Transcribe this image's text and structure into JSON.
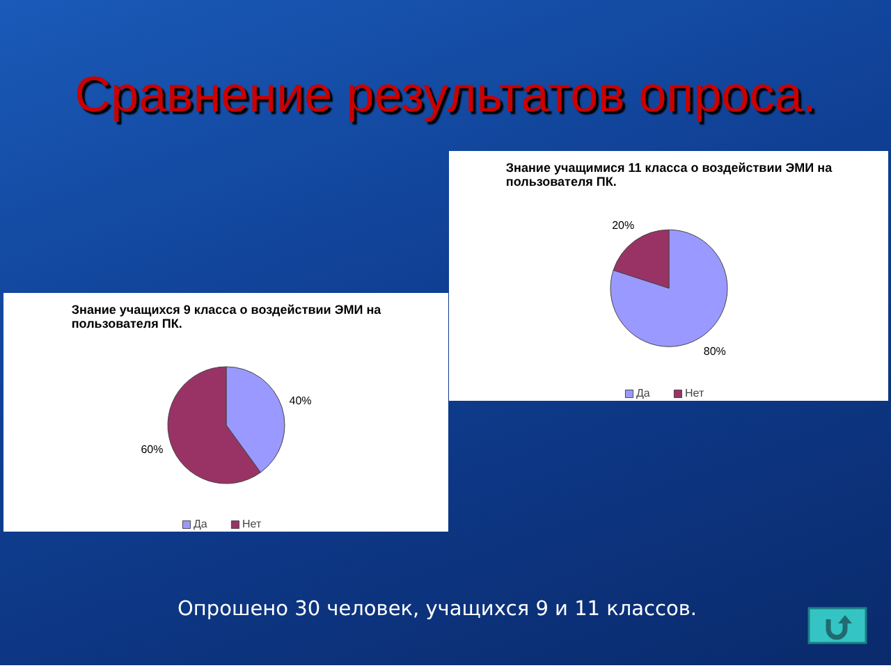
{
  "chart_data": [
    {
      "type": "other",
      "title": "Сравнение результатов опроса.",
      "annotations": [
        "Опрошено 30 человек, учащихся 9 и 11 классов."
      ]
    },
    {
      "type": "pie",
      "title": "Знание учащимися 11 класса о воздействии ЭМИ на пользователя ПК.",
      "categories": [
        "Да",
        "Нет"
      ],
      "values": [
        80,
        20
      ],
      "colors": [
        "#9999ff",
        "#993366"
      ],
      "value_labels": [
        "80%",
        "20%"
      ],
      "legend": "bottom"
    },
    {
      "type": "pie",
      "title": "Знание учащихся 9 класса о воздействии ЭМИ на пользователя ПК.",
      "categories": [
        "Да",
        "Нет"
      ],
      "values": [
        40,
        60
      ],
      "colors": [
        "#9999ff",
        "#993366"
      ],
      "value_labels": [
        "40%",
        "60%"
      ],
      "legend": "bottom"
    }
  ]
}
